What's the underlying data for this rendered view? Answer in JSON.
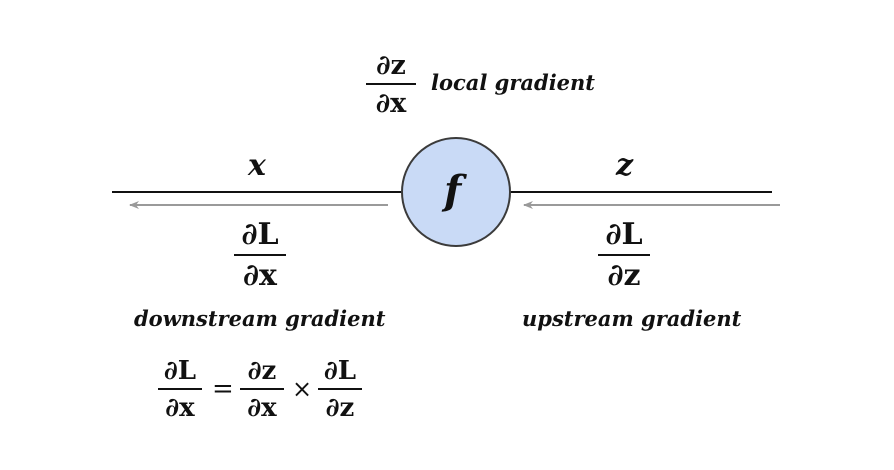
{
  "local_gradient": {
    "numerator": "∂z",
    "denominator": "∂x",
    "label": "local gradient"
  },
  "node": {
    "label": "f",
    "fill": "#c9daf6",
    "stroke": "#3b3b3b"
  },
  "input": {
    "label": "x"
  },
  "output": {
    "label": "z"
  },
  "downstream_gradient": {
    "numerator": "∂L",
    "denominator": "∂x",
    "label": "downstream gradient"
  },
  "upstream_gradient": {
    "numerator": "∂L",
    "denominator": "∂z",
    "label": "upstream gradient"
  },
  "chain_rule": {
    "lhs_numerator": "∂L",
    "lhs_denominator": "∂x",
    "equals": "=",
    "term1_numerator": "∂z",
    "term1_denominator": "∂x",
    "times": "×",
    "term2_numerator": "∂L",
    "term2_denominator": "∂z"
  },
  "colors": {
    "line": "#111111",
    "arrow": "#9a9a9a"
  }
}
